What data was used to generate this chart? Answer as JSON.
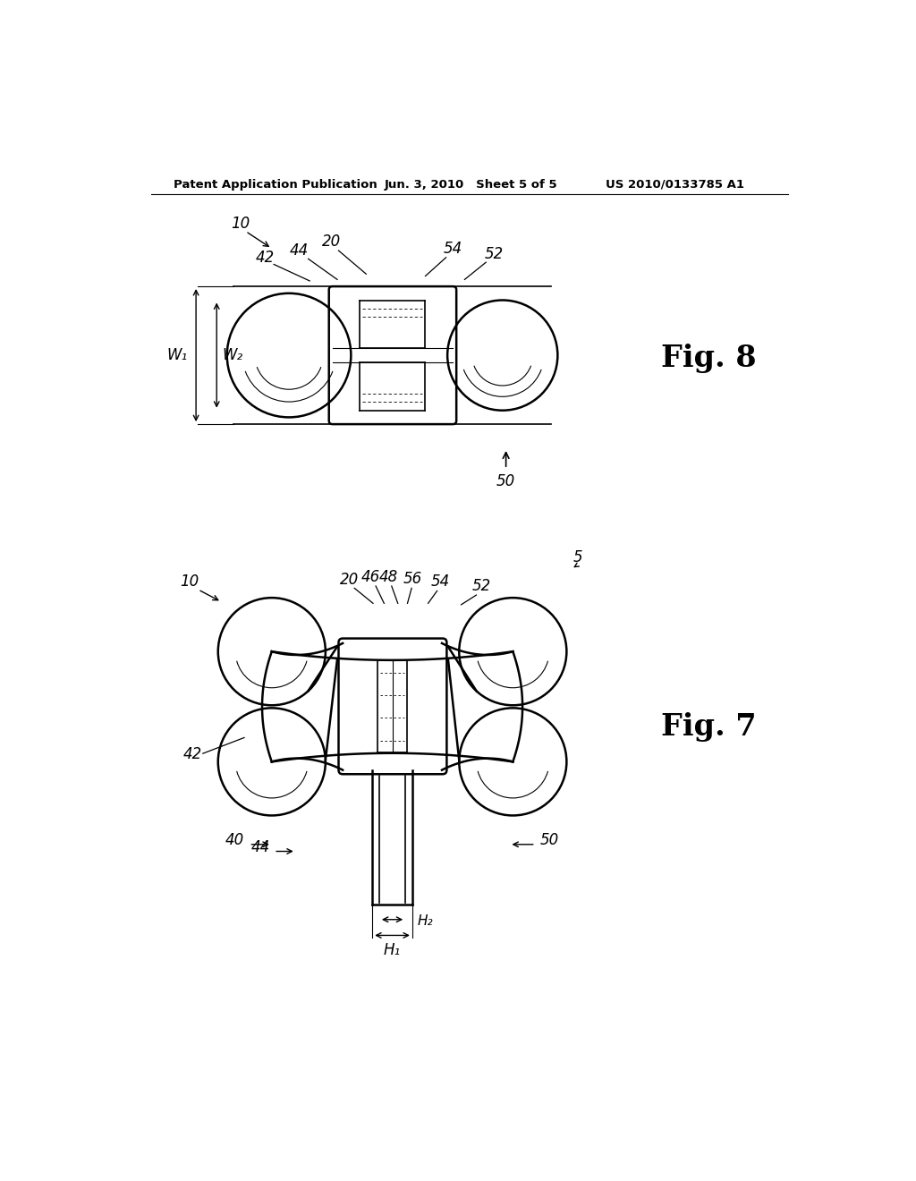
{
  "bg_color": "#ffffff",
  "header_text": "Patent Application Publication",
  "header_date": "Jun. 3, 2010   Sheet 5 of 5",
  "header_patent": "US 2010/0133785 A1",
  "fig8_label": "Fig. 8",
  "fig7_label": "Fig. 7"
}
